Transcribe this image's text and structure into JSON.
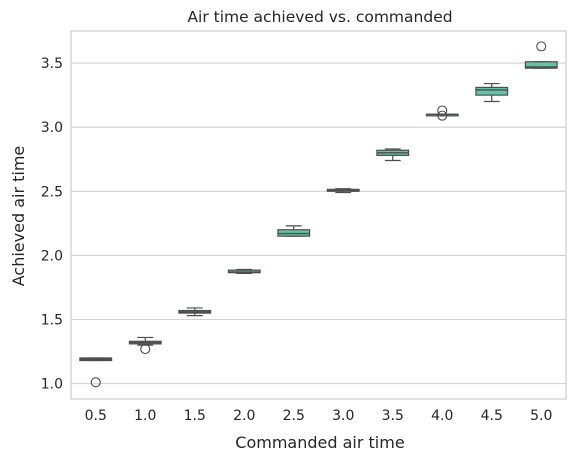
{
  "chart_data": {
    "type": "box",
    "title": "Air time achieved vs. commanded",
    "xlabel": "Commanded air time",
    "ylabel": "Achieved air time",
    "categories": [
      "0.5",
      "1.0",
      "1.5",
      "2.0",
      "2.5",
      "3.0",
      "3.5",
      "4.0",
      "4.5",
      "5.0"
    ],
    "ylim": [
      0.88,
      3.75
    ],
    "yticks": [
      "1.0",
      "1.5",
      "2.0",
      "2.5",
      "3.0",
      "3.5"
    ],
    "grid": "horizontal",
    "box_color": "#66c2a5",
    "line_color": "#4d4d4d",
    "boxes": [
      {
        "whislo": 1.18,
        "q1": 1.18,
        "med": 1.19,
        "q3": 1.2,
        "whishi": 1.2,
        "fliers": [
          1.01
        ]
      },
      {
        "whislo": 1.3,
        "q1": 1.31,
        "med": 1.32,
        "q3": 1.33,
        "whishi": 1.36,
        "fliers": [
          1.27
        ]
      },
      {
        "whislo": 1.53,
        "q1": 1.55,
        "med": 1.56,
        "q3": 1.57,
        "whishi": 1.59,
        "fliers": []
      },
      {
        "whislo": 1.86,
        "q1": 1.865,
        "med": 1.87,
        "q3": 1.885,
        "whishi": 1.89,
        "fliers": []
      },
      {
        "whislo": 2.15,
        "q1": 2.15,
        "med": 2.17,
        "q3": 2.2,
        "whishi": 2.23,
        "fliers": []
      },
      {
        "whislo": 2.49,
        "q1": 2.5,
        "med": 2.505,
        "q3": 2.515,
        "whishi": 2.52,
        "fliers": []
      },
      {
        "whislo": 2.74,
        "q1": 2.78,
        "med": 2.8,
        "q3": 2.82,
        "whishi": 2.83,
        "fliers": []
      },
      {
        "whislo": 3.09,
        "q1": 3.095,
        "med": 3.1,
        "q3": 3.1,
        "whishi": 3.1,
        "fliers": [
          3.13,
          3.09
        ]
      },
      {
        "whislo": 3.2,
        "q1": 3.25,
        "med": 3.29,
        "q3": 3.31,
        "whishi": 3.34,
        "fliers": []
      },
      {
        "whislo": 3.46,
        "q1": 3.46,
        "med": 3.47,
        "q3": 3.51,
        "whishi": 3.51,
        "fliers": [
          3.63
        ]
      }
    ]
  }
}
